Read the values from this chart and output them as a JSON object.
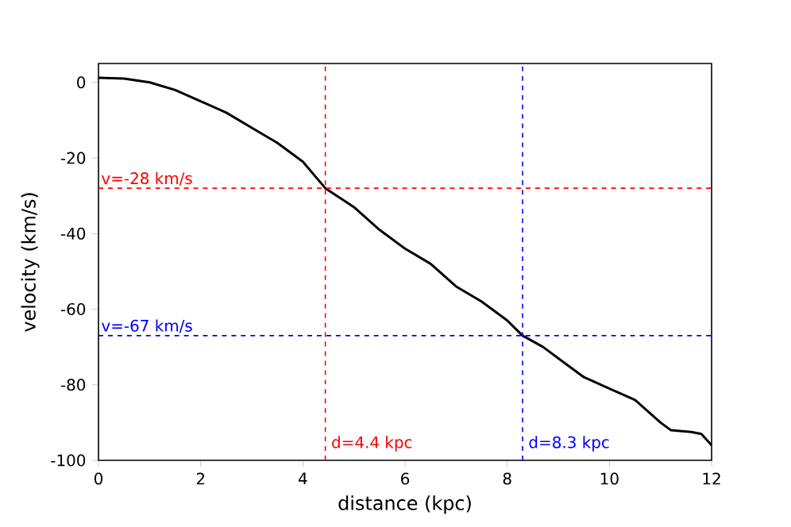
{
  "chart_data": {
    "type": "line",
    "xlabel": "distance (kpc)",
    "ylabel": "velocity (km/s)",
    "xlim": [
      0,
      12
    ],
    "ylim": [
      -100,
      5
    ],
    "xticks": [
      0,
      2,
      4,
      6,
      8,
      10,
      12
    ],
    "yticks": [
      -100,
      -80,
      -60,
      -40,
      -20,
      0
    ],
    "grid": false,
    "marker": "none",
    "line_style": "solid",
    "series": [
      {
        "color": "#000000",
        "x": [
          0,
          0.5,
          1,
          1.5,
          2,
          2.5,
          3,
          3.5,
          4,
          4.44,
          5,
          5.5,
          6,
          6.5,
          7,
          7.5,
          8,
          8.3,
          8.7,
          9,
          9.5,
          10,
          10.5,
          11,
          11.2,
          11.6,
          11.8,
          12
        ],
        "values": [
          1.2,
          1,
          0,
          -2,
          -5,
          -8,
          -12,
          -16,
          -21,
          -28,
          -33,
          -39,
          -44,
          -48,
          -54,
          -58,
          -63,
          -67,
          -70,
          -73,
          -78,
          -81,
          -84,
          -90,
          -92,
          -92.5,
          -93,
          -96
        ]
      }
    ],
    "ref_lines": [
      {
        "axis": "y",
        "value": -28,
        "label": "v=-28 km/s",
        "color": "#ff0000",
        "line_style": "dashed"
      },
      {
        "axis": "y",
        "value": -67,
        "label": "v=-67 km/s",
        "color": "#0000ff",
        "line_style": "dashed"
      },
      {
        "axis": "x",
        "value": 4.44,
        "label": "d=4.4 kpc",
        "color": "#ff0000",
        "line_style": "dashed"
      },
      {
        "axis": "x",
        "value": 8.3,
        "label": "d=8.3 kpc",
        "color": "#0000ff",
        "line_style": "dashed"
      }
    ]
  }
}
